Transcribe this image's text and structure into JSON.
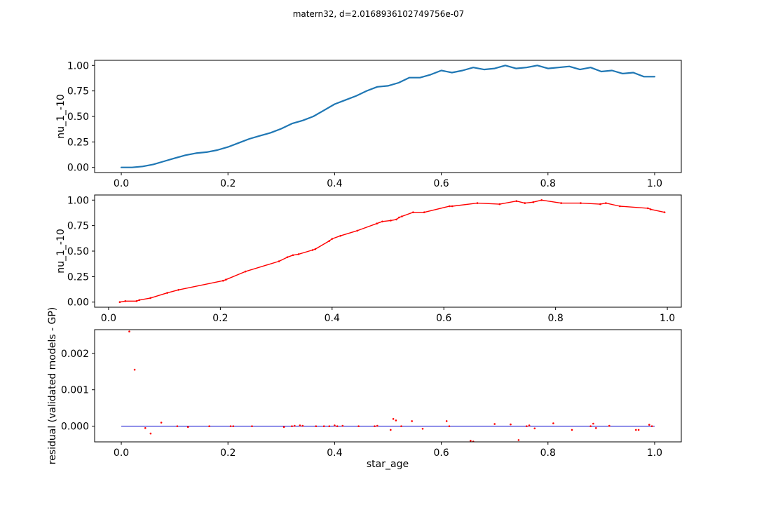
{
  "figure": {
    "suptitle": "matern32, d=2.0168936102749756e-07"
  },
  "chart_data": [
    {
      "type": "line",
      "panel": "top",
      "ylabel": "nu_1_-10",
      "xlabel": "",
      "xlim": [
        -0.05,
        1.05
      ],
      "ylim": [
        -0.05,
        1.05
      ],
      "xticks": [
        0.0,
        0.2,
        0.4,
        0.6,
        0.8,
        1.0
      ],
      "xtick_labels": [
        "0.0",
        "0.2",
        "0.4",
        "0.6",
        "0.8",
        "1.0"
      ],
      "yticks": [
        0.0,
        0.25,
        0.5,
        0.75,
        1.0
      ],
      "ytick_labels": [
        "0.00",
        "0.25",
        "0.50",
        "0.75",
        "1.00"
      ],
      "grid": false,
      "series": [
        {
          "color": "#1f77b4",
          "style": "thick-line",
          "x": [
            0.0,
            0.02,
            0.04,
            0.06,
            0.08,
            0.1,
            0.12,
            0.14,
            0.16,
            0.18,
            0.2,
            0.22,
            0.24,
            0.26,
            0.28,
            0.3,
            0.32,
            0.34,
            0.36,
            0.38,
            0.4,
            0.42,
            0.44,
            0.46,
            0.48,
            0.5,
            0.52,
            0.54,
            0.56,
            0.58,
            0.6,
            0.62,
            0.64,
            0.66,
            0.68,
            0.7,
            0.72,
            0.74,
            0.76,
            0.78,
            0.8,
            0.82,
            0.84,
            0.86,
            0.88,
            0.9,
            0.92,
            0.94,
            0.96,
            0.98,
            1.0
          ],
          "y": [
            0.0,
            0.0,
            0.01,
            0.03,
            0.06,
            0.09,
            0.12,
            0.14,
            0.15,
            0.17,
            0.2,
            0.24,
            0.28,
            0.31,
            0.34,
            0.38,
            0.43,
            0.46,
            0.5,
            0.56,
            0.62,
            0.66,
            0.7,
            0.75,
            0.79,
            0.8,
            0.83,
            0.88,
            0.88,
            0.91,
            0.95,
            0.93,
            0.95,
            0.98,
            0.96,
            0.97,
            1.0,
            0.97,
            0.98,
            1.0,
            0.97,
            0.98,
            0.99,
            0.96,
            0.98,
            0.94,
            0.95,
            0.92,
            0.93,
            0.89,
            0.89
          ]
        }
      ]
    },
    {
      "type": "line",
      "panel": "middle",
      "ylabel": "nu_1_-10",
      "xlabel": "",
      "xlim": [
        -0.025,
        1.025
      ],
      "ylim": [
        -0.05,
        1.05
      ],
      "xticks": [
        0.0,
        0.2,
        0.4,
        0.6,
        0.8,
        1.0
      ],
      "xtick_labels": [
        "0.0",
        "0.2",
        "0.4",
        "0.6",
        "0.8",
        "1.0"
      ],
      "yticks": [
        0.0,
        0.25,
        0.5,
        0.75,
        1.0
      ],
      "ytick_labels": [
        "0.00",
        "0.25",
        "0.50",
        "0.75",
        "1.00"
      ],
      "grid": false,
      "series": [
        {
          "color": "#ff0000",
          "style": "line-with-dots",
          "x": [
            0.02,
            0.03,
            0.05,
            0.055,
            0.075,
            0.105,
            0.125,
            0.205,
            0.21,
            0.245,
            0.305,
            0.32,
            0.33,
            0.34,
            0.365,
            0.37,
            0.395,
            0.4,
            0.415,
            0.445,
            0.48,
            0.49,
            0.505,
            0.515,
            0.52,
            0.525,
            0.545,
            0.565,
            0.61,
            0.615,
            0.66,
            0.7,
            0.73,
            0.745,
            0.76,
            0.775,
            0.81,
            0.845,
            0.88,
            0.89,
            0.915,
            0.965,
            0.97,
            0.995
          ],
          "y": [
            0.0,
            0.01,
            0.01,
            0.02,
            0.04,
            0.09,
            0.12,
            0.21,
            0.22,
            0.3,
            0.4,
            0.44,
            0.46,
            0.47,
            0.51,
            0.52,
            0.6,
            0.62,
            0.65,
            0.7,
            0.77,
            0.79,
            0.8,
            0.81,
            0.83,
            0.84,
            0.88,
            0.88,
            0.94,
            0.94,
            0.97,
            0.96,
            0.99,
            0.97,
            0.98,
            1.0,
            0.97,
            0.97,
            0.96,
            0.97,
            0.94,
            0.92,
            0.91,
            0.88
          ]
        }
      ]
    },
    {
      "type": "scatter",
      "panel": "bottom",
      "ylabel": "residual (validated models - GP)",
      "xlabel": "star_age",
      "xlim": [
        -0.05,
        1.05
      ],
      "ylim": [
        -0.00043,
        0.00265
      ],
      "xticks": [
        0.0,
        0.2,
        0.4,
        0.6,
        0.8,
        1.0
      ],
      "xtick_labels": [
        "0.0",
        "0.2",
        "0.4",
        "0.6",
        "0.8",
        "1.0"
      ],
      "yticks": [
        0.0,
        0.001,
        0.002
      ],
      "ytick_labels": [
        "0.000",
        "0.001",
        "0.002"
      ],
      "grid": false,
      "reference_line": {
        "y": 0.0,
        "x": [
          0.0,
          1.0
        ],
        "color": "#0000cd"
      },
      "series": [
        {
          "color": "#ff0000",
          "style": "dots",
          "x": [
            0.015,
            0.025,
            0.045,
            0.055,
            0.075,
            0.105,
            0.125,
            0.165,
            0.205,
            0.21,
            0.245,
            0.305,
            0.32,
            0.325,
            0.335,
            0.34,
            0.365,
            0.38,
            0.39,
            0.4,
            0.405,
            0.415,
            0.445,
            0.475,
            0.48,
            0.505,
            0.51,
            0.515,
            0.525,
            0.545,
            0.565,
            0.61,
            0.615,
            0.655,
            0.66,
            0.7,
            0.73,
            0.745,
            0.76,
            0.765,
            0.775,
            0.81,
            0.845,
            0.88,
            0.885,
            0.89,
            0.915,
            0.965,
            0.97,
            0.99,
            0.995
          ],
          "y": [
            0.0026,
            0.00155,
            -5e-05,
            -0.0002,
            0.0001,
            0.0,
            -2e-05,
            0.0,
            0.0,
            0.0,
            0.0,
            -2e-05,
            0.0,
            1e-05,
            2e-05,
            1e-05,
            0.0,
            0.0,
            0.0,
            2e-05,
            0.0,
            1e-05,
            0.0,
            0.0,
            1e-05,
            -0.0001,
            0.0002,
            0.00016,
            0.0,
            0.00014,
            -7e-05,
            0.00014,
            0.0,
            -0.0004,
            -0.00042,
            6e-05,
            5e-05,
            -0.00038,
            0.0,
            2e-05,
            -6e-05,
            8e-05,
            -0.0001,
            0.0,
            7e-05,
            -5e-05,
            1e-05,
            -0.0001,
            -0.0001,
            4e-05,
            0.0
          ]
        }
      ]
    }
  ]
}
